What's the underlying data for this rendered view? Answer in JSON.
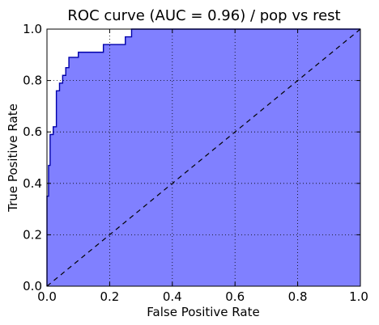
{
  "chart_data": {
    "type": "area",
    "title": "ROC curve (AUC = 0.96) / pop vs rest",
    "xlabel": "False Positive Rate",
    "ylabel": "True Positive Rate",
    "xlim": [
      0.0,
      1.0
    ],
    "ylim": [
      0.0,
      1.0
    ],
    "x_ticks": [
      "0.0",
      "0.2",
      "0.4",
      "0.6",
      "0.8",
      "1.0"
    ],
    "y_ticks": [
      "0.0",
      "0.2",
      "0.4",
      "0.6",
      "0.8",
      "1.0"
    ],
    "grid": true,
    "series": [
      {
        "style": "step line with filled area",
        "color": "#0000aa",
        "fill_color": "#8080ff",
        "x": [
          0.0,
          0.0,
          0.005,
          0.005,
          0.01,
          0.01,
          0.02,
          0.02,
          0.03,
          0.03,
          0.04,
          0.04,
          0.05,
          0.05,
          0.06,
          0.06,
          0.07,
          0.07,
          0.1,
          0.1,
          0.14,
          0.14,
          0.18,
          0.18,
          0.25,
          0.25,
          0.27,
          0.27,
          1.0
        ],
        "y": [
          0.0,
          0.35,
          0.35,
          0.47,
          0.47,
          0.59,
          0.59,
          0.62,
          0.62,
          0.76,
          0.76,
          0.79,
          0.79,
          0.82,
          0.82,
          0.85,
          0.85,
          0.89,
          0.89,
          0.91,
          0.91,
          0.91,
          0.91,
          0.94,
          0.94,
          0.97,
          0.97,
          1.0,
          1.0
        ]
      },
      {
        "style": "dashed diagonal",
        "color": "#000000",
        "x": [
          0.0,
          1.0
        ],
        "y": [
          0.0,
          1.0
        ]
      }
    ]
  }
}
